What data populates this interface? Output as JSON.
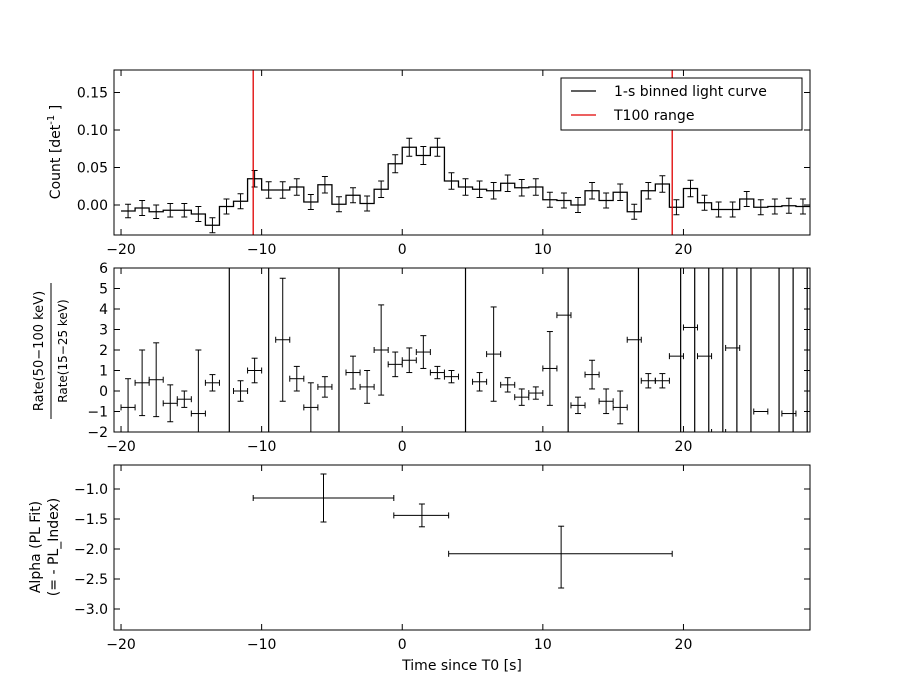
{
  "chart_data": [
    {
      "type": "line",
      "panel": "light_curve",
      "ylabel_prefix": "Count [det",
      "ylabel_sup": "-1",
      "ylabel_suffix": "]",
      "xlim": [
        -20.5,
        29.0
      ],
      "ylim": [
        -0.04,
        0.18
      ],
      "xticks": [
        -20,
        -10,
        0,
        10,
        20
      ],
      "xtick_labels": [
        "−20",
        "−10",
        "0",
        "10",
        "20"
      ],
      "yticks": [
        0.0,
        0.05,
        0.1,
        0.15
      ],
      "ytick_labels": [
        "0.00",
        "0.05",
        "0.10",
        "0.15"
      ],
      "x_start": -20,
      "bin_width": 1,
      "values": [
        -0.008,
        -0.004,
        -0.009,
        -0.007,
        -0.007,
        -0.012,
        -0.027,
        -0.002,
        0.005,
        0.035,
        0.02,
        0.02,
        0.024,
        0.004,
        0.027,
        0.001,
        0.013,
        0.002,
        0.021,
        0.055,
        0.077,
        0.066,
        0.077,
        0.032,
        0.024,
        0.021,
        0.019,
        0.029,
        0.023,
        0.024,
        0.007,
        0.006,
        0.0,
        0.019,
        0.006,
        0.017,
        -0.009,
        0.019,
        0.028,
        -0.003,
        0.022,
        0.003,
        -0.006,
        -0.006,
        0.008,
        -0.003,
        -0.002,
        -0.001,
        -0.002
      ],
      "errors": [
        0.009,
        0.01,
        0.009,
        0.009,
        0.009,
        0.01,
        0.01,
        0.01,
        0.01,
        0.011,
        0.011,
        0.011,
        0.011,
        0.01,
        0.011,
        0.01,
        0.01,
        0.01,
        0.011,
        0.012,
        0.012,
        0.012,
        0.012,
        0.011,
        0.011,
        0.011,
        0.011,
        0.011,
        0.011,
        0.011,
        0.01,
        0.01,
        0.01,
        0.011,
        0.01,
        0.011,
        0.01,
        0.011,
        0.011,
        0.01,
        0.011,
        0.01,
        0.01,
        0.01,
        0.01,
        0.01,
        0.01,
        0.01,
        0.01
      ],
      "t100_lines": [
        -10.6,
        19.2
      ],
      "legend": {
        "position": "upper-right",
        "entries": [
          {
            "label": "1-s binned light curve",
            "color": "#000000"
          },
          {
            "label": "T100 range",
            "color": "#e00000"
          }
        ]
      }
    },
    {
      "type": "scatter",
      "panel": "hardness_ratio",
      "ylabel_num": "Rate(50−100 keV)",
      "ylabel_den": "Rate(15−25 keV)",
      "xlim": [
        -20.5,
        29.0
      ],
      "ylim": [
        -2,
        6
      ],
      "xticks": [
        -20,
        -10,
        0,
        10,
        20
      ],
      "xtick_labels": [
        "−20",
        "−10",
        "0",
        "10",
        "20"
      ],
      "yticks": [
        -2,
        -1,
        0,
        1,
        2,
        3,
        4,
        5,
        6
      ],
      "ytick_labels": [
        "−2",
        "−1",
        "0",
        "1",
        "2",
        "3",
        "4",
        "5",
        "6"
      ],
      "points": [
        {
          "x": -19.5,
          "y": -0.8,
          "xerr": 0.5,
          "yerr": 1.4
        },
        {
          "x": -18.5,
          "y": 0.4,
          "xerr": 0.5,
          "yerr": 1.6
        },
        {
          "x": -17.5,
          "y": 0.55,
          "xerr": 0.5,
          "yerr": 1.8
        },
        {
          "x": -16.5,
          "y": -0.6,
          "xerr": 0.5,
          "yerr": 0.9
        },
        {
          "x": -15.5,
          "y": -0.4,
          "xerr": 0.5,
          "yerr": 0.4
        },
        {
          "x": -14.5,
          "y": -1.1,
          "xerr": 0.5,
          "yerr": 3.1
        },
        {
          "x": -13.5,
          "y": 0.4,
          "xerr": 0.5,
          "yerr": 0.4
        },
        {
          "x": -11.5,
          "y": 0.0,
          "xerr": 0.5,
          "yerr": 0.5
        },
        {
          "x": -10.5,
          "y": 1.0,
          "xerr": 0.5,
          "yerr": 0.6
        },
        {
          "x": -8.5,
          "y": 2.5,
          "xerr": 0.5,
          "yerr": 3.0
        },
        {
          "x": -7.5,
          "y": 0.6,
          "xerr": 0.5,
          "yerr": 0.6
        },
        {
          "x": -6.5,
          "y": -0.8,
          "xerr": 0.5,
          "yerr": 1.2
        },
        {
          "x": -5.5,
          "y": 0.2,
          "xerr": 0.5,
          "yerr": 0.5
        },
        {
          "x": -3.5,
          "y": 0.9,
          "xerr": 0.5,
          "yerr": 0.8
        },
        {
          "x": -2.5,
          "y": 0.2,
          "xerr": 0.5,
          "yerr": 0.8
        },
        {
          "x": -1.5,
          "y": 2.0,
          "xerr": 0.5,
          "yerr": 2.2
        },
        {
          "x": -0.5,
          "y": 1.3,
          "xerr": 0.5,
          "yerr": 0.6
        },
        {
          "x": 0.5,
          "y": 1.5,
          "xerr": 0.5,
          "yerr": 0.6
        },
        {
          "x": 1.5,
          "y": 1.9,
          "xerr": 0.5,
          "yerr": 0.8
        },
        {
          "x": 2.5,
          "y": 0.9,
          "xerr": 0.5,
          "yerr": 0.3
        },
        {
          "x": 3.5,
          "y": 0.7,
          "xerr": 0.5,
          "yerr": 0.3
        },
        {
          "x": 5.5,
          "y": 0.45,
          "xerr": 0.5,
          "yerr": 0.45
        },
        {
          "x": 6.5,
          "y": 1.8,
          "xerr": 0.5,
          "yerr": 2.3
        },
        {
          "x": 7.5,
          "y": 0.3,
          "xerr": 0.5,
          "yerr": 0.35
        },
        {
          "x": 8.5,
          "y": -0.3,
          "xerr": 0.5,
          "yerr": 0.4
        },
        {
          "x": 9.5,
          "y": -0.1,
          "xerr": 0.5,
          "yerr": 0.3
        },
        {
          "x": 10.5,
          "y": 1.1,
          "xerr": 0.5,
          "yerr": 1.8
        },
        {
          "x": 11.5,
          "y": 3.7,
          "xerr": 0.5,
          "yerr": 0.0
        },
        {
          "x": 12.5,
          "y": -0.7,
          "xerr": 0.5,
          "yerr": 0.4
        },
        {
          "x": 13.5,
          "y": 0.8,
          "xerr": 0.5,
          "yerr": 0.7
        },
        {
          "x": 14.5,
          "y": -0.5,
          "xerr": 0.5,
          "yerr": 0.6
        },
        {
          "x": 15.5,
          "y": -0.8,
          "xerr": 0.5,
          "yerr": 0.8
        },
        {
          "x": 16.5,
          "y": 2.5,
          "xerr": 0.5,
          "yerr": 0.0
        },
        {
          "x": 17.5,
          "y": 0.5,
          "xerr": 0.5,
          "yerr": 0.35
        },
        {
          "x": 18.5,
          "y": 0.5,
          "xerr": 0.5,
          "yerr": 0.35
        },
        {
          "x": 19.5,
          "y": 1.7,
          "xerr": 0.5,
          "yerr": 0.0
        },
        {
          "x": 20.5,
          "y": 3.1,
          "xerr": 0.5,
          "yerr": 0.0
        },
        {
          "x": 21.5,
          "y": 1.7,
          "xerr": 0.5,
          "yerr": 0.0
        },
        {
          "x": 22.5,
          "y": -2.0,
          "xerr": 0.5,
          "yerr": 0.0
        },
        {
          "x": 23.5,
          "y": 2.1,
          "xerr": 0.5,
          "yerr": 0.0
        },
        {
          "x": 25.5,
          "y": -1.0,
          "xerr": 0.5,
          "yerr": 0.0
        },
        {
          "x": 27.5,
          "y": -1.1,
          "xerr": 0.5,
          "yerr": 0.0
        }
      ],
      "full_height_bars": [
        -12.3,
        -9.5,
        -4.5,
        4.5,
        11.8,
        16.8,
        19.8,
        20.8,
        21.8,
        22.8,
        23.8,
        24.8,
        26.8,
        27.8,
        28.8
      ]
    },
    {
      "type": "scatter",
      "panel": "alpha",
      "ylabel_line1": "Alpha (PL Fit)",
      "ylabel_line2": "(= - PL_Index)",
      "xlabel": "Time since T0 [s]",
      "xlim": [
        -20.5,
        29.0
      ],
      "ylim": [
        -3.35,
        -0.6
      ],
      "xticks": [
        -20,
        -10,
        0,
        10,
        20
      ],
      "xtick_labels": [
        "−20",
        "−10",
        "0",
        "10",
        "20"
      ],
      "yticks": [
        -1.0,
        -1.5,
        -2.0,
        -2.5,
        -3.0
      ],
      "ytick_labels": [
        "−1.0",
        "−1.5",
        "−2.0",
        "−2.5",
        "−3.0"
      ],
      "points": [
        {
          "x_lo": -10.6,
          "x_hi": -0.6,
          "x": -5.6,
          "y": -1.15,
          "y_lo": -1.55,
          "y_hi": -0.75
        },
        {
          "x_lo": -0.6,
          "x_hi": 3.3,
          "x": 1.4,
          "y": -1.44,
          "y_lo": -1.63,
          "y_hi": -1.25
        },
        {
          "x_lo": 3.3,
          "x_hi": 19.2,
          "x": 11.3,
          "y": -2.08,
          "y_lo": -2.65,
          "y_hi": -1.62
        }
      ]
    }
  ]
}
